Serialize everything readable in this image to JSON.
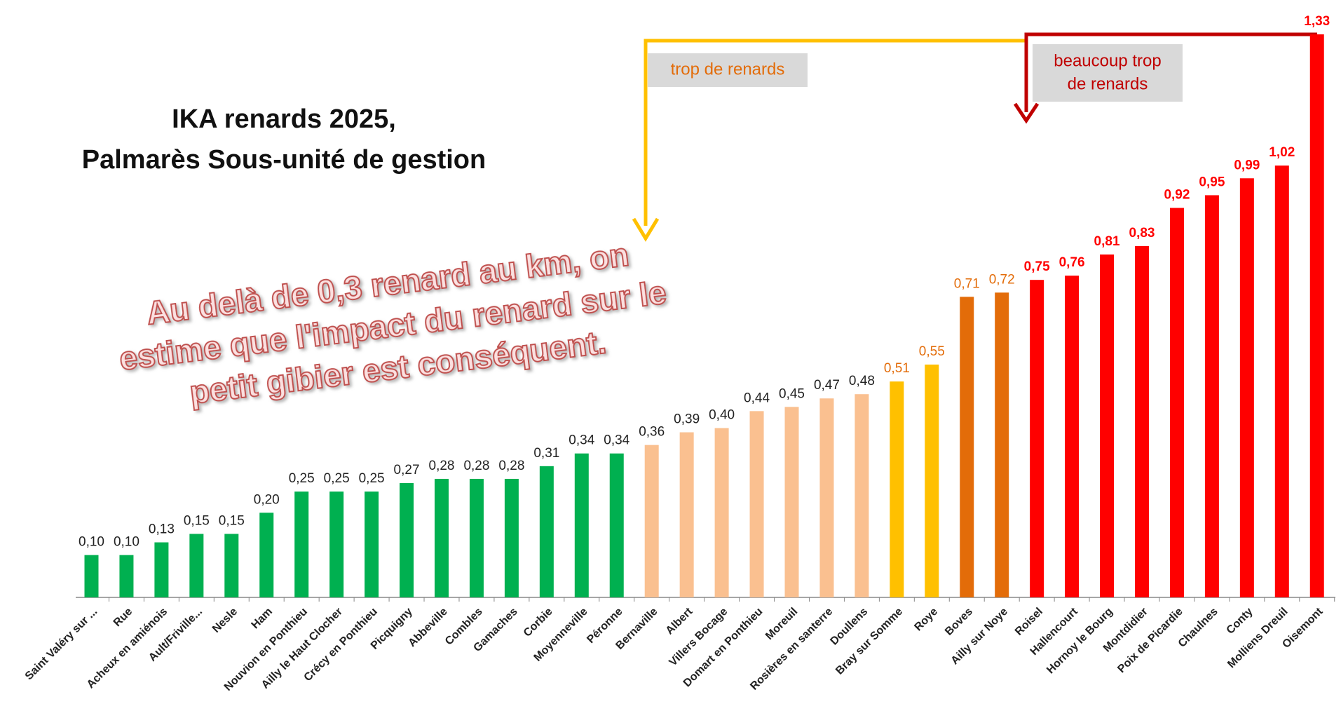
{
  "chart_data": {
    "type": "bar",
    "title": [
      "IKA renards 2025,",
      "Palmarès Sous-unité de gestion"
    ],
    "annotations": {
      "threshold_note": [
        "Au delà de 0,3 renard au km, on",
        "estime que l'impact du renard sur le",
        "petit gibier est conséquent."
      ],
      "too_many": "trop de renards",
      "far_too_many": [
        "beaucoup trop",
        "de renards"
      ]
    },
    "categories": [
      "Saint Valéry sur ...",
      "Rue",
      "Acheux en amiénois",
      "Ault/Friville...",
      "Nesle",
      "Ham",
      "Nouvion en Ponthieu",
      "Ailly le Haut Clocher",
      "Crécy en Ponthieu",
      "Picquigny",
      "Abbeville",
      "Combles",
      "Gamaches",
      "Corbie",
      "Moyenneville",
      "Péronne",
      "Bernaville",
      "Albert",
      "Villers Bocage",
      "Domart en Ponthieu",
      "Moreuil",
      "Rosières en santerre",
      "Doullens",
      "Bray sur Somme",
      "Roye",
      "Boves",
      "Ailly sur Noye",
      "Roisel",
      "Hallencourt",
      "Hornoy le Bourg",
      "Montdidier",
      "Poix de Picardie",
      "Chaulnes",
      "Conty",
      "Molliens Dreuil",
      "Oisemont"
    ],
    "values": [
      0.1,
      0.1,
      0.13,
      0.15,
      0.15,
      0.2,
      0.25,
      0.25,
      0.25,
      0.27,
      0.28,
      0.28,
      0.28,
      0.31,
      0.34,
      0.34,
      0.36,
      0.39,
      0.4,
      0.44,
      0.45,
      0.47,
      0.48,
      0.51,
      0.55,
      0.71,
      0.72,
      0.75,
      0.76,
      0.81,
      0.83,
      0.92,
      0.95,
      0.99,
      1.02,
      1.33
    ],
    "value_labels": [
      "0,10",
      "0,10",
      "0,13",
      "0,15",
      "0,15",
      "0,20",
      "0,25",
      "0,25",
      "0,25",
      "0,27",
      "0,28",
      "0,28",
      "0,28",
      "0,31",
      "0,34",
      "0,34",
      "0,36",
      "0,39",
      "0,40",
      "0,44",
      "0,45",
      "0,47",
      "0,48",
      "0,51",
      "0,55",
      "0,71",
      "0,72",
      "0,75",
      "0,76",
      "0,81",
      "0,83",
      "0,92",
      "0,95",
      "0,99",
      "1,02",
      "1,33"
    ],
    "colors": [
      "#00b050",
      "#00b050",
      "#00b050",
      "#00b050",
      "#00b050",
      "#00b050",
      "#00b050",
      "#00b050",
      "#00b050",
      "#00b050",
      "#00b050",
      "#00b050",
      "#00b050",
      "#00b050",
      "#00b050",
      "#00b050",
      "#fac090",
      "#fac090",
      "#fac090",
      "#fac090",
      "#fac090",
      "#fac090",
      "#fac090",
      "#ffc000",
      "#ffc000",
      "#e36c09",
      "#e36c09",
      "#ff0000",
      "#ff0000",
      "#ff0000",
      "#ff0000",
      "#ff0000",
      "#ff0000",
      "#ff0000",
      "#ff0000",
      "#ff0000"
    ],
    "label_colors": [
      "#222",
      "#222",
      "#222",
      "#222",
      "#222",
      "#222",
      "#222",
      "#222",
      "#222",
      "#222",
      "#222",
      "#222",
      "#222",
      "#222",
      "#222",
      "#222",
      "#222",
      "#222",
      "#222",
      "#222",
      "#222",
      "#222",
      "#222",
      "#e36c09",
      "#e36c09",
      "#e36c09",
      "#e36c09",
      "#ff0000",
      "#ff0000",
      "#ff0000",
      "#ff0000",
      "#ff0000",
      "#ff0000",
      "#ff0000",
      "#ff0000",
      "#ff0000"
    ]
  }
}
